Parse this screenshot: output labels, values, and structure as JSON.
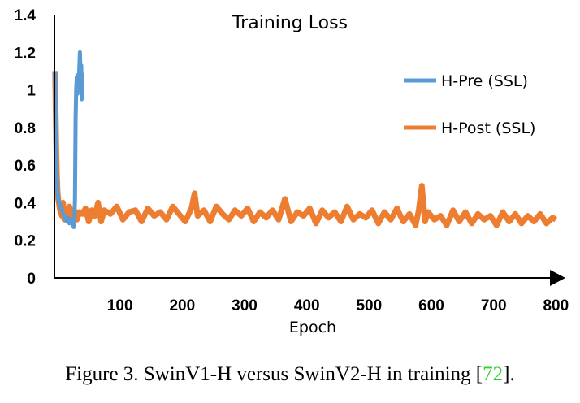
{
  "chart_data": {
    "type": "line",
    "title": "Training Loss",
    "xlabel": "Epoch",
    "ylabel": "",
    "xlim": [
      0,
      810
    ],
    "ylim": [
      0,
      1.4
    ],
    "x_ticks": [
      100,
      200,
      300,
      400,
      500,
      600,
      700,
      800
    ],
    "x_tick_labels": [
      "100",
      "200",
      "300",
      "400",
      "500",
      "600",
      "700",
      "800"
    ],
    "y_ticks": [
      0,
      0.2,
      0.4,
      0.6,
      0.8,
      1.0,
      1.2,
      1.4
    ],
    "y_tick_labels": [
      "0",
      "0.2",
      "0.4",
      "0.6",
      "0.8",
      "1",
      "1.2",
      "1.4"
    ],
    "grid": false,
    "legend_position": "right",
    "series": [
      {
        "name": "H-Pre (SSL)",
        "color": "#5b9bd5",
        "x": [
          1,
          2,
          3,
          4,
          5,
          6,
          8,
          10,
          12,
          14,
          16,
          18,
          20,
          22,
          24,
          26,
          28,
          30,
          31,
          32,
          33,
          34,
          35,
          36,
          37,
          38,
          39,
          40,
          41,
          42,
          43,
          44,
          45
        ],
        "values": [
          1.1,
          0.85,
          0.62,
          0.52,
          0.46,
          0.42,
          0.4,
          0.38,
          0.36,
          0.34,
          0.33,
          0.31,
          0.3,
          0.32,
          0.29,
          0.31,
          0.3,
          0.28,
          0.27,
          0.3,
          0.42,
          0.85,
          1.0,
          1.07,
          0.98,
          1.08,
          1.02,
          1.12,
          1.2,
          1.05,
          1.13,
          0.95,
          1.09
        ]
      },
      {
        "name": "H-Post (SSL)",
        "color": "#ed7d31",
        "x": [
          1,
          2,
          3,
          4,
          5,
          6,
          7,
          8,
          9,
          10,
          12,
          14,
          16,
          18,
          20,
          24,
          28,
          32,
          36,
          40,
          45,
          50,
          55,
          60,
          65,
          70,
          75,
          80,
          90,
          100,
          110,
          120,
          130,
          140,
          150,
          160,
          170,
          180,
          190,
          200,
          210,
          220,
          225,
          230,
          240,
          250,
          260,
          270,
          280,
          290,
          300,
          310,
          320,
          330,
          340,
          350,
          360,
          370,
          380,
          390,
          400,
          410,
          420,
          430,
          440,
          450,
          460,
          470,
          480,
          490,
          500,
          510,
          520,
          530,
          540,
          550,
          560,
          570,
          580,
          585,
          590,
          595,
          600,
          610,
          620,
          630,
          640,
          650,
          660,
          670,
          680,
          690,
          700,
          710,
          720,
          730,
          740,
          750,
          760,
          770,
          780,
          790,
          800,
          805
        ],
        "values": [
          1.1,
          0.9,
          0.7,
          0.55,
          0.47,
          0.42,
          0.4,
          0.38,
          0.36,
          0.35,
          0.33,
          0.4,
          0.31,
          0.36,
          0.34,
          0.38,
          0.33,
          0.36,
          0.31,
          0.35,
          0.34,
          0.37,
          0.3,
          0.36,
          0.33,
          0.4,
          0.3,
          0.36,
          0.34,
          0.38,
          0.31,
          0.35,
          0.36,
          0.3,
          0.37,
          0.33,
          0.35,
          0.31,
          0.38,
          0.34,
          0.3,
          0.37,
          0.45,
          0.33,
          0.36,
          0.3,
          0.38,
          0.34,
          0.31,
          0.36,
          0.33,
          0.37,
          0.3,
          0.35,
          0.32,
          0.36,
          0.31,
          0.42,
          0.3,
          0.35,
          0.33,
          0.37,
          0.29,
          0.36,
          0.32,
          0.35,
          0.3,
          0.38,
          0.31,
          0.34,
          0.32,
          0.36,
          0.29,
          0.35,
          0.31,
          0.37,
          0.3,
          0.34,
          0.28,
          0.36,
          0.49,
          0.3,
          0.35,
          0.31,
          0.33,
          0.28,
          0.36,
          0.3,
          0.35,
          0.29,
          0.34,
          0.31,
          0.33,
          0.28,
          0.35,
          0.3,
          0.34,
          0.29,
          0.33,
          0.3,
          0.34,
          0.29,
          0.32,
          0.31
        ]
      }
    ]
  },
  "caption": {
    "text": "Figure 3. SwinV1-H versus SwinV2-H in training [",
    "ref": "72",
    "end": "]."
  }
}
